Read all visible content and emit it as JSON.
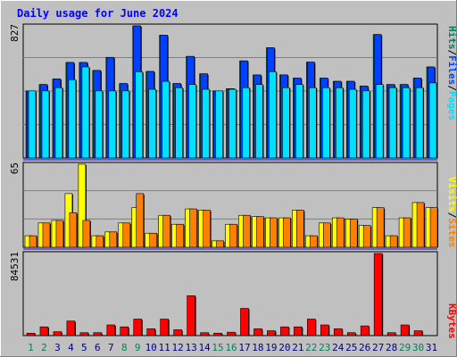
{
  "chart_data": [
    {
      "type": "bar",
      "title": "Daily usage for June 2024",
      "categories": [
        "1",
        "2",
        "3",
        "4",
        "5",
        "6",
        "7",
        "8",
        "9",
        "10",
        "11",
        "12",
        "13",
        "14",
        "15",
        "16",
        "17",
        "18",
        "19",
        "20",
        "21",
        "22",
        "23",
        "24",
        "25",
        "26",
        "27",
        "28",
        "29",
        "30",
        "31"
      ],
      "weekend_days": [
        "1",
        "2",
        "8",
        "9",
        "15",
        "16",
        "22",
        "23",
        "29",
        "30"
      ],
      "ymax_label": "827",
      "ylim": [
        0,
        827
      ],
      "series": [
        {
          "name": "Hits",
          "values": [
            420,
            460,
            495,
            598,
            598,
            548,
            630,
            466,
            827,
            542,
            769,
            466,
            636,
            527,
            420,
            434,
            608,
            520,
            690,
            520,
            500,
            600,
            500,
            480,
            480,
            450,
            773,
            460,
            460,
            500,
            570
          ]
        },
        {
          "name": "Files",
          "values": [
            420,
            460,
            495,
            598,
            598,
            548,
            630,
            466,
            827,
            542,
            769,
            466,
            636,
            527,
            420,
            434,
            608,
            520,
            690,
            520,
            500,
            600,
            500,
            480,
            480,
            450,
            773,
            460,
            460,
            500,
            570
          ]
        },
        {
          "name": "Pages",
          "values": [
            420,
            420,
            440,
            490,
            570,
            420,
            420,
            420,
            540,
            430,
            480,
            440,
            460,
            430,
            420,
            430,
            440,
            460,
            540,
            440,
            460,
            440,
            440,
            440,
            430,
            420,
            460,
            440,
            440,
            440,
            470
          ]
        }
      ],
      "legend": [
        "Hits",
        "Files",
        "Pages"
      ],
      "colors": {
        "Hits": "#00805c",
        "Files": "#0040ff",
        "Pages": "#00e0ff"
      }
    },
    {
      "type": "bar",
      "categories": [
        "1",
        "2",
        "3",
        "4",
        "5",
        "6",
        "7",
        "8",
        "9",
        "10",
        "11",
        "12",
        "13",
        "14",
        "15",
        "16",
        "17",
        "18",
        "19",
        "20",
        "21",
        "22",
        "23",
        "24",
        "25",
        "26",
        "27",
        "28",
        "29",
        "30",
        "31"
      ],
      "ymax_label": "65",
      "ylim": [
        0,
        65
      ],
      "series": [
        {
          "name": "Visits",
          "values": [
            9,
            19,
            21,
            42,
            65,
            9,
            12,
            19,
            31,
            11,
            25,
            18,
            30,
            29,
            5,
            18,
            25,
            24,
            23,
            23,
            29,
            9,
            19,
            23,
            22,
            17,
            31,
            9,
            23,
            35,
            31
          ]
        },
        {
          "name": "Sites",
          "values": [
            9,
            19,
            21,
            27,
            21,
            9,
            12,
            19,
            42,
            11,
            25,
            18,
            30,
            29,
            5,
            18,
            25,
            24,
            23,
            23,
            29,
            9,
            19,
            23,
            22,
            17,
            31,
            9,
            23,
            35,
            31
          ]
        }
      ],
      "legend": [
        "Visits",
        "Sites"
      ],
      "colors": {
        "Visits": "#ffff00",
        "Sites": "#ff8000"
      }
    },
    {
      "type": "bar",
      "categories": [
        "1",
        "2",
        "3",
        "4",
        "5",
        "6",
        "7",
        "8",
        "9",
        "10",
        "11",
        "12",
        "13",
        "14",
        "15",
        "16",
        "17",
        "18",
        "19",
        "20",
        "21",
        "22",
        "23",
        "24",
        "25",
        "26",
        "27",
        "28",
        "29",
        "30",
        "31"
      ],
      "ymax_label": "84531",
      "ylim": [
        0,
        84531
      ],
      "series": [
        {
          "name": "KBytes",
          "values": [
            2500,
            9000,
            4000,
            15000,
            3000,
            3000,
            11000,
            9000,
            17000,
            7000,
            17000,
            6000,
            41000,
            3000,
            2500,
            3500,
            28000,
            7000,
            5000,
            9000,
            9000,
            17000,
            11000,
            7000,
            3000,
            10000,
            84531,
            3000,
            11000,
            5000,
            0
          ]
        }
      ],
      "legend": [
        "KBytes"
      ],
      "colors": {
        "KBytes": "#ff0000"
      }
    }
  ],
  "legend_separator": "/",
  "colors": {
    "background": "#c0c0c0",
    "plot_background": "#c0c0c0",
    "title_text": "#0000ff",
    "axis_text": "#000000",
    "weekday_text": "#000080",
    "weekend_text": "#00805c",
    "grid": "#0000ff",
    "separator": "#0000ff",
    "shadow": "#000000"
  }
}
